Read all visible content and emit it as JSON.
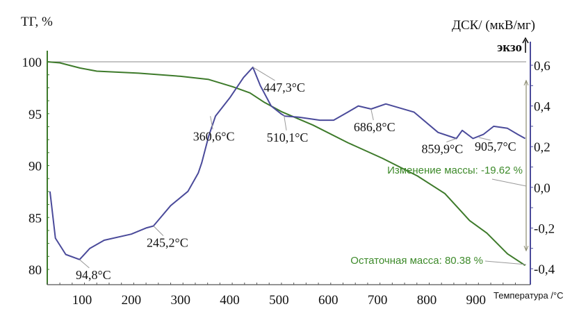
{
  "chart_data": {
    "type": "line",
    "title": "",
    "xlabel": "Температура /°C",
    "ylabel_left": "ТГ, %",
    "ylabel_right": "ДСК/ (мкВ/мг)",
    "exo_label": "экзо",
    "xlim": [
      30,
      1000
    ],
    "ylim_left": [
      78.5,
      102.5
    ],
    "ylim_right": [
      -0.44,
      0.7
    ],
    "x_ticks": [
      100,
      200,
      300,
      400,
      500,
      600,
      700,
      800,
      900
    ],
    "y_left_ticks": [
      100,
      95,
      90,
      85,
      80
    ],
    "y_right_ticks": [
      "0,6",
      "0,4",
      "0,2",
      "0,0",
      "-0,2",
      "-0,4"
    ],
    "y_right_tick_values": [
      0.6,
      0.4,
      0.2,
      0.0,
      -0.2,
      -0.4
    ],
    "colors": {
      "tg": "#3d7a2a",
      "dsc": "#4a4a9a",
      "ref": "#888888"
    },
    "series": [
      {
        "name": "ТГ",
        "axis": "left",
        "x": [
          30,
          55,
          96,
          130,
          215,
          300,
          357,
          406,
          441,
          470,
          505,
          569,
          640,
          710,
          781,
          837,
          866,
          887,
          922,
          964,
          1000
        ],
        "y": [
          100,
          99.9,
          99.4,
          99.1,
          98.9,
          98.6,
          98.3,
          97.6,
          97.0,
          96.1,
          95.2,
          93.9,
          92.2,
          90.7,
          89.0,
          87.3,
          85.8,
          84.7,
          83.5,
          81.5,
          80.38
        ]
      },
      {
        "name": "ДСК",
        "axis": "right",
        "x": [
          35,
          46,
          67,
          95,
          116,
          145,
          200,
          230,
          245,
          252,
          280,
          315,
          336,
          343,
          357,
          371,
          400,
          428,
          447,
          462,
          484,
          505,
          512,
          540,
          583,
          611,
          640,
          661,
          687,
          717,
          774,
          823,
          860,
          872,
          894,
          915,
          936,
          964,
          985,
          1000
        ],
        "y": [
          -0.02,
          -0.25,
          -0.33,
          -0.355,
          -0.3,
          -0.26,
          -0.23,
          -0.2,
          -0.19,
          -0.17,
          -0.09,
          -0.02,
          0.07,
          0.12,
          0.25,
          0.35,
          0.44,
          0.54,
          0.59,
          0.5,
          0.4,
          0.36,
          0.35,
          0.345,
          0.33,
          0.33,
          0.37,
          0.4,
          0.385,
          0.41,
          0.37,
          0.27,
          0.24,
          0.28,
          0.24,
          0.26,
          0.3,
          0.29,
          0.26,
          0.24
        ]
      }
    ],
    "annotations": [
      {
        "text": "94,8°C",
        "x": 94.8,
        "y": -0.355
      },
      {
        "text": "245,2°C",
        "x": 245.2,
        "y": -0.19
      },
      {
        "text": "360,6°C",
        "x": 360.6,
        "y": 0.35
      },
      {
        "text": "447,3°C",
        "x": 447.3,
        "y": 0.59
      },
      {
        "text": "510,1°C",
        "x": 510.1,
        "y": 0.355
      },
      {
        "text": "686,8°C",
        "x": 686.8,
        "y": 0.385
      },
      {
        "text": "859,9°C",
        "x": 859.9,
        "y": 0.24
      },
      {
        "text": "905,7°C",
        "x": 905.7,
        "y": 0.245
      }
    ],
    "mass_change": "Изменение массы: -19.62 %",
    "residual_mass": "Остаточная масса: 80.38 %"
  }
}
